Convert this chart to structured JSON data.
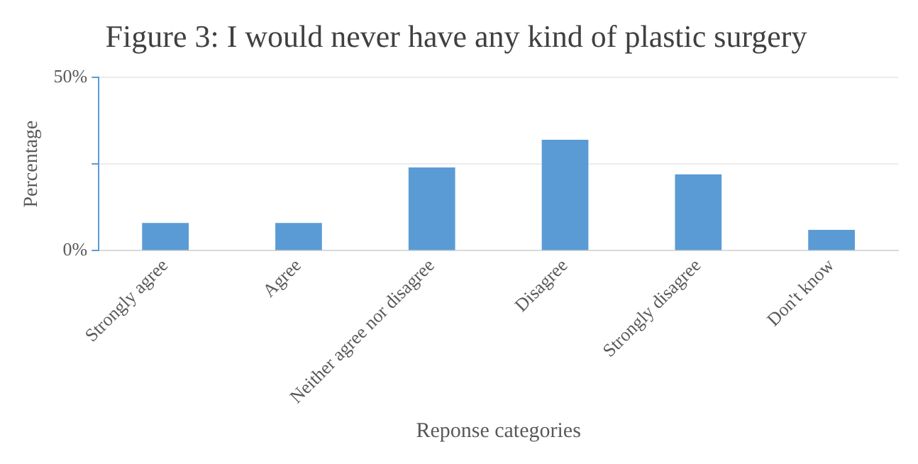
{
  "chart_data": {
    "type": "bar",
    "title": "Figure 3: I would never have any kind of plastic surgery",
    "xlabel": "Reponse categories",
    "ylabel": "Percentage",
    "categories": [
      "Strongly agree",
      "Agree",
      "Neither agree nor disagree",
      "Disagree",
      "Strongly disagree",
      "Don't know"
    ],
    "values": [
      8,
      8,
      24,
      32,
      22,
      6
    ],
    "color": "#5b9bd5",
    "ylim": [
      0,
      50
    ],
    "yticks": [
      {
        "value": 0,
        "label": "0%"
      },
      {
        "value": 25,
        "label": null
      },
      {
        "value": 50,
        "label": "50%"
      }
    ],
    "grid": "y",
    "legend": false
  }
}
